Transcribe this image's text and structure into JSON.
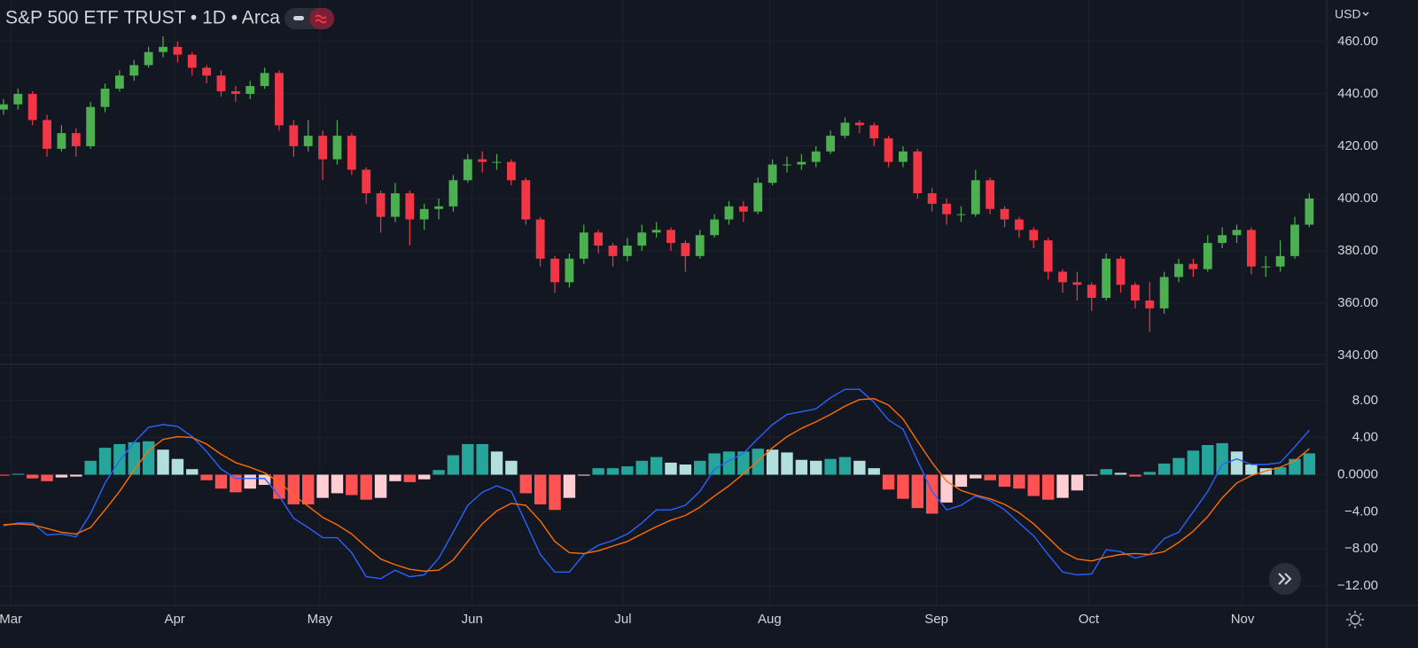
{
  "header": {
    "title": "S&P 500 ETF TRUST • 1D • Arca",
    "currency": "USD"
  },
  "chart_data": [
    {
      "type": "candlestick",
      "up_color": "#4caf50",
      "down_color": "#f23645",
      "xlim": [
        -0.24,
        91.2
      ],
      "ylim": [
        336.6,
        475.9
      ],
      "yticks": [
        {
          "value": 340,
          "label": "340.00"
        },
        {
          "value": 360,
          "label": "360.00"
        },
        {
          "value": 380,
          "label": "380.00"
        },
        {
          "value": 400,
          "label": "400.00"
        },
        {
          "value": 420,
          "label": "420.00"
        },
        {
          "value": 440,
          "label": "440.00"
        },
        {
          "value": 460,
          "label": "460.00"
        }
      ],
      "grid": true,
      "ohlc": [
        [
          434,
          438,
          432,
          436
        ],
        [
          436,
          442,
          434,
          440
        ],
        [
          440,
          441,
          428,
          430
        ],
        [
          430,
          432,
          416,
          419
        ],
        [
          419,
          428,
          418,
          425
        ],
        [
          425,
          427,
          416,
          420
        ],
        [
          420,
          437,
          419,
          435
        ],
        [
          435,
          444,
          433,
          442
        ],
        [
          442,
          449,
          441,
          447
        ],
        [
          447,
          453,
          445,
          451
        ],
        [
          451,
          458,
          450,
          456
        ],
        [
          456,
          462,
          454,
          458
        ],
        [
          458,
          460,
          452,
          455
        ],
        [
          455,
          456,
          447,
          450
        ],
        [
          450,
          451,
          444,
          447
        ],
        [
          447,
          449,
          439,
          441
        ],
        [
          441,
          443,
          437,
          440
        ],
        [
          440,
          445,
          438,
          443
        ],
        [
          443,
          450,
          442,
          448
        ],
        [
          448,
          449,
          426,
          428
        ],
        [
          428,
          430,
          416,
          420
        ],
        [
          420,
          430,
          418,
          424
        ],
        [
          424,
          426,
          407,
          415
        ],
        [
          415,
          430,
          413,
          424
        ],
        [
          424,
          425,
          409,
          411
        ],
        [
          411,
          412,
          398,
          402
        ],
        [
          402,
          403,
          387,
          393
        ],
        [
          393,
          406,
          391,
          402
        ],
        [
          402,
          403,
          382,
          392
        ],
        [
          392,
          398,
          388,
          396
        ],
        [
          396,
          400,
          392,
          397
        ],
        [
          397,
          409,
          395,
          407
        ],
        [
          407,
          417,
          406,
          415
        ],
        [
          415,
          418,
          410,
          414
        ],
        [
          414,
          417,
          411,
          414
        ],
        [
          414,
          415,
          405,
          407
        ],
        [
          407,
          408,
          390,
          392
        ],
        [
          392,
          393,
          374,
          377
        ],
        [
          377,
          378,
          364,
          368
        ],
        [
          368,
          379,
          366,
          377
        ],
        [
          377,
          390,
          375,
          387
        ],
        [
          387,
          388,
          379,
          382
        ],
        [
          382,
          383,
          374,
          378
        ],
        [
          378,
          385,
          376,
          382
        ],
        [
          382,
          390,
          380,
          387
        ],
        [
          387,
          391,
          385,
          388
        ],
        [
          388,
          389,
          380,
          383
        ],
        [
          383,
          384,
          372,
          378
        ],
        [
          378,
          388,
          377,
          386
        ],
        [
          386,
          394,
          385,
          392
        ],
        [
          392,
          399,
          390,
          397
        ],
        [
          397,
          399,
          391,
          395
        ],
        [
          395,
          408,
          394,
          406
        ],
        [
          406,
          415,
          405,
          413
        ],
        [
          413,
          416,
          410,
          413
        ],
        [
          413,
          417,
          411,
          414
        ],
        [
          414,
          420,
          412,
          418
        ],
        [
          418,
          426,
          417,
          424
        ],
        [
          424,
          431,
          423,
          429
        ],
        [
          429,
          430,
          425,
          428
        ],
        [
          428,
          429,
          420,
          423
        ],
        [
          423,
          424,
          412,
          414
        ],
        [
          414,
          420,
          412,
          418
        ],
        [
          418,
          419,
          400,
          402
        ],
        [
          402,
          404,
          395,
          398
        ],
        [
          398,
          400,
          390,
          394
        ],
        [
          394,
          397,
          391,
          394
        ],
        [
          394,
          411,
          393,
          407
        ],
        [
          407,
          408,
          394,
          396
        ],
        [
          396,
          397,
          389,
          392
        ],
        [
          392,
          393,
          385,
          388
        ],
        [
          388,
          389,
          381,
          384
        ],
        [
          384,
          385,
          369,
          372
        ],
        [
          372,
          373,
          364,
          368
        ],
        [
          368,
          372,
          361,
          367
        ],
        [
          367,
          368,
          357,
          362
        ],
        [
          362,
          379,
          361,
          377
        ],
        [
          377,
          378,
          364,
          367
        ],
        [
          367,
          368,
          358,
          361
        ],
        [
          361,
          368,
          349,
          358
        ],
        [
          358,
          372,
          356,
          370
        ],
        [
          370,
          377,
          368,
          375
        ],
        [
          375,
          377,
          370,
          373
        ],
        [
          373,
          386,
          372,
          383
        ],
        [
          383,
          389,
          381,
          386
        ],
        [
          386,
          390,
          383,
          388
        ],
        [
          388,
          389,
          371,
          374
        ],
        [
          374,
          378,
          370,
          374
        ],
        [
          374,
          384,
          372,
          378
        ],
        [
          378,
          393,
          377,
          390
        ],
        [
          390,
          402,
          389,
          400
        ]
      ]
    },
    {
      "type": "macd",
      "xlim": [
        -0.24,
        91.2
      ],
      "ylim": [
        -14.1,
        11.9
      ],
      "xticks": [
        {
          "value": 0.5,
          "label": "Mar"
        },
        {
          "value": 11.8,
          "label": "Apr"
        },
        {
          "value": 21.8,
          "label": "May"
        },
        {
          "value": 32.3,
          "label": "Jun"
        },
        {
          "value": 42.7,
          "label": "Jul"
        },
        {
          "value": 52.8,
          "label": "Aug"
        },
        {
          "value": 64.3,
          "label": "Sep"
        },
        {
          "value": 74.8,
          "label": "Oct"
        },
        {
          "value": 85.4,
          "label": "Nov"
        }
      ],
      "yticks": [
        {
          "value": -12,
          "label": "−12.00"
        },
        {
          "value": -8,
          "label": "−8.00"
        },
        {
          "value": -4,
          "label": "−4.00"
        },
        {
          "value": 0,
          "label": "0.0000"
        },
        {
          "value": 4,
          "label": "4.00"
        },
        {
          "value": 8,
          "label": "8.00"
        }
      ],
      "grid": true,
      "histogram": {
        "colors": {
          "positive_rising": "#26a69a",
          "positive_falling": "#b2dfdb",
          "negative_falling": "#ff5252",
          "negative_rising": "#ffcdd2"
        },
        "values": [
          -0.1,
          0.1,
          -0.4,
          -0.7,
          -0.3,
          -0.2,
          1.5,
          2.9,
          3.3,
          3.5,
          3.6,
          2.7,
          1.7,
          0.6,
          -0.6,
          -1.5,
          -1.9,
          -1.5,
          -1.1,
          -2.6,
          -3.2,
          -3.2,
          -2.5,
          -2.0,
          -2.2,
          -2.7,
          -2.5,
          -0.7,
          -0.8,
          -0.5,
          0.5,
          2.1,
          3.3,
          3.3,
          2.5,
          1.5,
          -2.0,
          -3.2,
          -3.8,
          -2.5,
          -0.1,
          0.7,
          0.7,
          0.9,
          1.5,
          1.9,
          1.3,
          1.1,
          1.5,
          2.3,
          2.5,
          2.5,
          2.8,
          2.7,
          2.4,
          1.6,
          1.5,
          1.7,
          1.9,
          1.5,
          0.7,
          -1.6,
          -2.6,
          -3.6,
          -4.2,
          -3.0,
          -1.3,
          -0.4,
          -0.6,
          -1.3,
          -1.5,
          -2.3,
          -2.7,
          -2.5,
          -1.7,
          -0.1,
          0.6,
          0.2,
          -0.2,
          0.3,
          1.2,
          1.8,
          2.6,
          3.2,
          3.4,
          2.5,
          1.1,
          0.7,
          0.8,
          1.7,
          2.3
        ]
      },
      "series": [
        {
          "color": "#2962ff",
          "values": [
            -5.5,
            -5.2,
            -5.2,
            -6.5,
            -6.4,
            -6.7,
            -4.2,
            -0.9,
            1.5,
            3.5,
            5.1,
            5.4,
            5.2,
            4.1,
            2.5,
            0.6,
            -0.4,
            -0.4,
            -0.4,
            -2.3,
            -4.7,
            -5.7,
            -6.8,
            -6.8,
            -8.4,
            -11,
            -11.2,
            -10.3,
            -11,
            -10.8,
            -9,
            -6.2,
            -3.3,
            -1.9,
            -1.2,
            -1.8,
            -5.2,
            -8.6,
            -10.5,
            -10.5,
            -8.6,
            -7.6,
            -7.1,
            -6.4,
            -5.2,
            -3.8,
            -3.8,
            -3.3,
            -1.8,
            0.6,
            1.5,
            2.3,
            3.9,
            5.4,
            6.5,
            6.8,
            7.1,
            8.3,
            9.2,
            9.2,
            7.8,
            5.9,
            4.9,
            1.5,
            -1.8,
            -3.8,
            -3.3,
            -2.3,
            -2.8,
            -3.8,
            -5.2,
            -6.6,
            -8.6,
            -10.5,
            -10.8,
            -10.7,
            -8.1,
            -8.3,
            -9,
            -8.6,
            -6.9,
            -6.2,
            -4,
            -1.8,
            1.1,
            1.7,
            1.1,
            1.1,
            1.3,
            3,
            4.8
          ]
        },
        {
          "color": "#ff6d00",
          "values": [
            -5.4,
            -5.3,
            -5.4,
            -5.8,
            -6.2,
            -6.4,
            -5.7,
            -3.8,
            -1.8,
            0.5,
            2.6,
            3.8,
            4.1,
            4.0,
            3.3,
            2.2,
            1.3,
            0.8,
            0.2,
            -0.8,
            -2.2,
            -3.4,
            -4.6,
            -5.4,
            -6.4,
            -7.8,
            -9.1,
            -9.7,
            -10.2,
            -10.4,
            -10.3,
            -9.2,
            -7.2,
            -5.3,
            -3.9,
            -3.1,
            -3.3,
            -5.0,
            -7.2,
            -8.4,
            -8.5,
            -8.2,
            -7.7,
            -7.2,
            -6.4,
            -5.6,
            -4.9,
            -4.4,
            -3.5,
            -2.3,
            -1.2,
            0.1,
            1.5,
            2.9,
            4.1,
            5.0,
            5.7,
            6.5,
            7.4,
            8.1,
            8.2,
            7.5,
            6.0,
            3.6,
            1.3,
            -0.7,
            -1.7,
            -2.2,
            -2.6,
            -3.2,
            -4.1,
            -5.3,
            -6.8,
            -8.3,
            -9.1,
            -9.3,
            -8.9,
            -8.6,
            -8.5,
            -8.6,
            -8.3,
            -7.3,
            -6.1,
            -4.5,
            -2.5,
            -0.9,
            -0.1,
            0.4,
            0.8,
            1.5,
            2.8
          ]
        }
      ]
    }
  ]
}
